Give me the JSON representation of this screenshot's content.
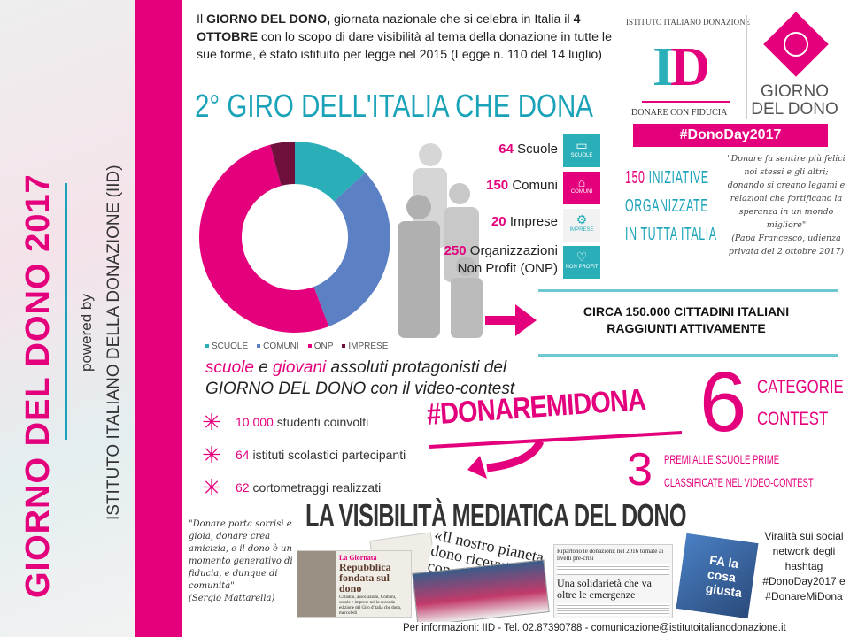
{
  "sidebar": {
    "title": "GIORNO DEL DONO 2017",
    "powered_by": "powered by",
    "institute": "ISTITUTO ITALIANO DELLA DONAZIONE (IID)"
  },
  "intro": {
    "t1": "Il ",
    "b1": "GIORNO DEL DONO,",
    "t2": " giornata nazionale che si celebra in Italia il ",
    "b2": "4 OTTOBRE",
    "t3": " con lo scopo di dare visibilità al tema della donazione in tutte le sue forme, è stato istituito per legge nel 2015 (Legge n. 110 del 14 luglio)"
  },
  "giro_title": "2° GIRO DELL'ITALIA CHE DONA",
  "logo": {
    "arc_text": "ISTITUTO ITALIANO DONAZIONE",
    "mark": "ID",
    "tagline": "DONARE CON FIDUCIA",
    "gdd_line1": "GIORNO",
    "gdd_line2": "DEL DONO",
    "hashtag": "#DonoDay2017"
  },
  "stats": [
    {
      "num": "64",
      "label": "Scuole",
      "icon": "book-icon",
      "tile": "SCUOLE",
      "color": "#2aafb9"
    },
    {
      "num": "150",
      "label": "Comuni",
      "icon": "building-icon",
      "tile": "COMUNI",
      "color": "#e4007c"
    },
    {
      "num": "20",
      "label": "Imprese",
      "icon": "gears-icon",
      "tile": "IMPRESE",
      "color": "#f2f2f2"
    },
    {
      "num": "250",
      "label": "Organizzazioni Non Profit (ONP)",
      "icon": "heart-icon",
      "tile": "NON PROFIT",
      "color": "#2aafb9"
    }
  ],
  "iniziative": {
    "num": "150",
    "line1": "INIZIATIVE",
    "line2": "ORGANIZZATE",
    "line3": "IN TUTTA ITALIA"
  },
  "papa_quote": {
    "text": "\"Donare fa sentire più felici noi stessi e gli altri; donando si creano legami e relazioni che fortificano la speranza in un mondo migliore\"",
    "source": "(Papa Francesco, udienza privata del 2 ottobre 2017)"
  },
  "circa": {
    "line1": "CIRCA 150.000 CITTADINI ITALIANI",
    "line2": "RAGGIUNTI ATTIVAMENTE"
  },
  "chart_data": {
    "type": "pie",
    "donut": true,
    "categories": [
      "SCUOLE",
      "COMUNI",
      "ONP",
      "IMPRESE"
    ],
    "values": [
      64,
      150,
      250,
      20
    ],
    "colors": [
      "#2aafb9",
      "#5b80c4",
      "#e4007c",
      "#6e0f3c"
    ],
    "legend": "bottom"
  },
  "contest": {
    "w1": "scuole",
    "t1": " e ",
    "w2": "giovani",
    "t2": " assoluti protagonisti del",
    "line2": "GIORNO DEL DONO con il video-contest"
  },
  "bullets": [
    {
      "num": "10.000",
      "text": " studenti coinvolti"
    },
    {
      "num": "64",
      "text": " istituti scolastici partecipanti"
    },
    {
      "num": "62",
      "text": " cortometraggi realizzati"
    }
  ],
  "hashtag": "#DONAREMIDONA",
  "categorie": {
    "num": "6",
    "line1": "CATEGORIE",
    "line2": "CONTEST"
  },
  "premi": {
    "num": "3",
    "line1": "PREMI ALLE SCUOLE PRIME",
    "line2": "CLASSIFICATE NEL VIDEO-CONTEST"
  },
  "media_title": "LA VISIBILITÀ MEDIATICA DEL DONO",
  "mattarella": {
    "text": "\"Donare porta sorrisi e gioia, donare crea amicizia, e il dono è un momento generativo di fiducia, e dunque di comunità\"",
    "source": "(Sergio Mattarella)"
  },
  "clippings": {
    "c1_head": "La Giornata",
    "c1_title": "Repubblica fondata sul dono",
    "c1_body": "Cittadini, associazioni, Comuni, scuole e imprese nel la seconda edizione del Giro d'Italia che dona, mercoledì",
    "c2": "«Il nostro pianeta dono ricevuto da con",
    "c3": "Ripartono le donazioni: nel 2016 tornate ai livelli pre-crisi",
    "c4": "Una solidarietà che va oltre le emergenze",
    "c5": "FA la cosa giusta"
  },
  "viral": {
    "text": "Viralità sui social network degli hashtag",
    "h1": "#DonoDay2017 e",
    "h2": "#DonareMiDona"
  },
  "footer": "Per informazioni: IID - Tel. 02.87390788 - comunicazione@istitutoitalianodonazione.it"
}
